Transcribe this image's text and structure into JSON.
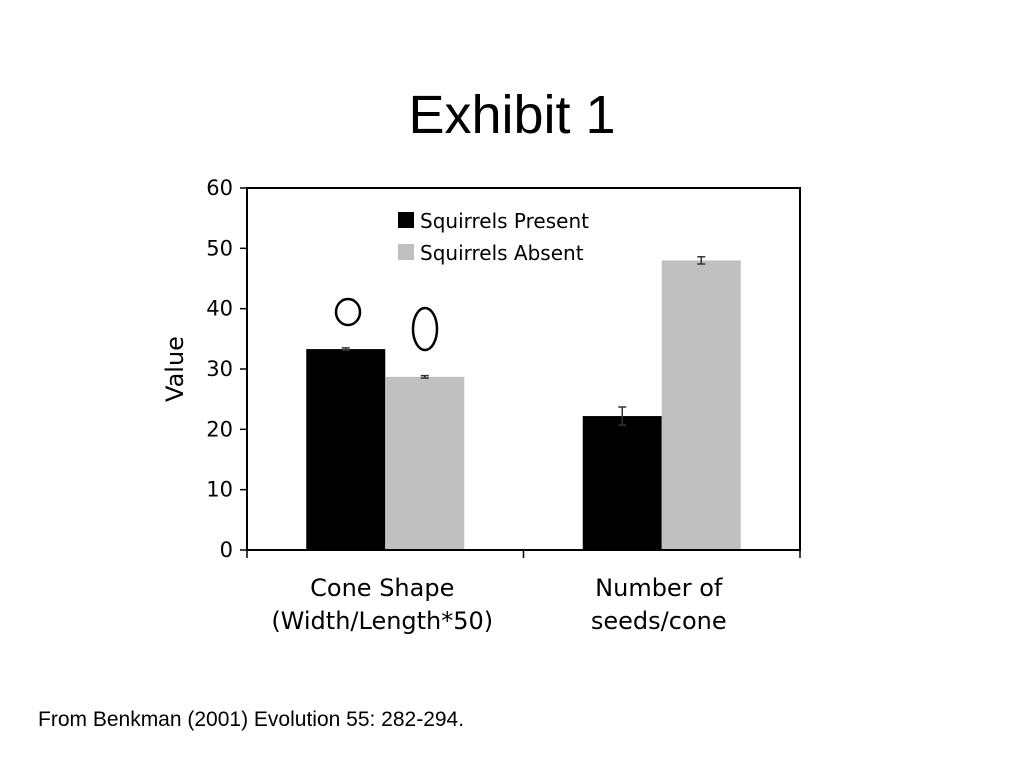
{
  "slide": {
    "title": "Exhibit 1",
    "source": "From Benkman (2001) Evolution 55: 282-294."
  },
  "chart_data": {
    "type": "bar",
    "title": "",
    "xlabel": "",
    "ylabel": "Value",
    "ylim": [
      0,
      60
    ],
    "yticks": [
      0,
      10,
      20,
      30,
      40,
      50,
      60
    ],
    "categories": [
      [
        "Cone Shape",
        "(Width/Length*50)"
      ],
      [
        "Number of",
        "seeds/cone"
      ]
    ],
    "series": [
      {
        "name": "Squirrels Present",
        "color": "#000000",
        "values": [
          33.3,
          22.2
        ],
        "errors": [
          0.2,
          1.5
        ]
      },
      {
        "name": "Squirrels Absent",
        "color": "#c0c0c0",
        "values": [
          28.7,
          48.0
        ],
        "errors": [
          0.2,
          0.6
        ]
      }
    ],
    "legend_position": "top-center",
    "grid": false,
    "annotations": [
      "round-cone-icon",
      "elongated-cone-icon"
    ]
  }
}
